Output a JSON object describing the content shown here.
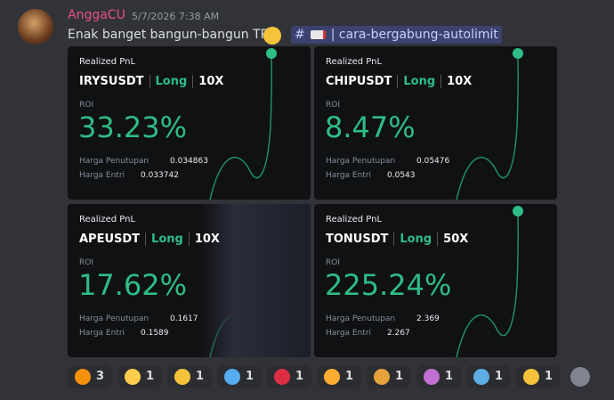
{
  "message": {
    "author": "AnggaCU",
    "timestamp": "5/7/2026 7:38 AM",
    "text": "Enak banget bangun-bangun TP",
    "channel_mention": {
      "hash": "#",
      "name": "| cara-bergabung-autolimit"
    }
  },
  "cards": [
    {
      "label": "Realized PnL",
      "symbol": "IRYSUSDT",
      "side": "Long",
      "leverage": "10X",
      "roi_label": "ROI",
      "roi": "33.23%",
      "close_label": "Harga Penutupan",
      "close": "0.034863",
      "entry_label": "Harga Entri",
      "entry": "0.033742"
    },
    {
      "label": "Realized PnL",
      "symbol": "CHIPUSDT",
      "side": "Long",
      "leverage": "10X",
      "roi_label": "ROI",
      "roi": "8.47%",
      "close_label": "Harga Penutupan",
      "close": "0.05476",
      "entry_label": "Harga Entri",
      "entry": "0.0543"
    },
    {
      "label": "Realized PnL",
      "symbol": "APEUSDT",
      "side": "Long",
      "leverage": "10X",
      "roi_label": "ROI",
      "roi": "17.62%",
      "close_label": "Harga Penutupan",
      "close": "0.1617",
      "entry_label": "Harga Entri",
      "entry": "0.1589"
    },
    {
      "label": "Realized PnL",
      "symbol": "TONUSDT",
      "side": "Long",
      "leverage": "50X",
      "roi_label": "ROI",
      "roi": "225.24%",
      "close_label": "Harga Penutupan",
      "close": "2.369",
      "entry_label": "Harga Entri",
      "entry": "2.267"
    }
  ],
  "reactions": [
    {
      "count": "3"
    },
    {
      "count": "1"
    },
    {
      "count": "1"
    },
    {
      "count": "1"
    },
    {
      "count": "1"
    },
    {
      "count": "1"
    },
    {
      "count": "1"
    },
    {
      "count": "1"
    },
    {
      "count": "1"
    },
    {
      "count": "1"
    }
  ]
}
